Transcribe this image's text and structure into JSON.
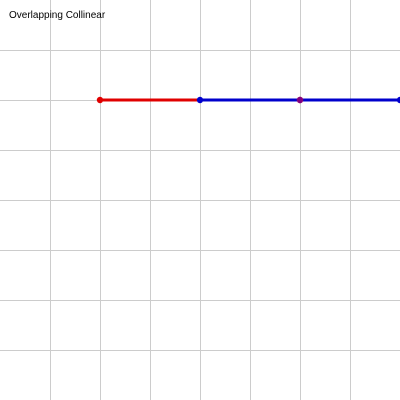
{
  "title": "Overlapping Collinear",
  "grid": {
    "on": true,
    "color": "#cccccc"
  },
  "segments": [
    {
      "id": "red",
      "color": "#e00000",
      "point_color": "#e00000",
      "from": [
        2,
        2
      ],
      "to": [
        6,
        2
      ]
    },
    {
      "id": "blue",
      "color": "#0000cc",
      "point_color": "#0000cc",
      "from": [
        4,
        2
      ],
      "to": [
        8,
        2
      ]
    }
  ],
  "overlap_point": {
    "color": "#800080",
    "at": [
      6,
      2
    ]
  }
}
